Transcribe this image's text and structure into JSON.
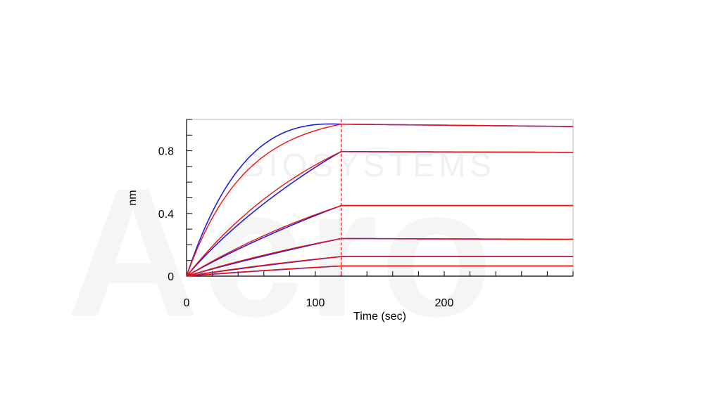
{
  "watermark": {
    "text": "Acro",
    "subtext": "BIOSYSTEMS"
  },
  "chart_data": {
    "type": "line",
    "title": "",
    "xlabel": "Time (sec)",
    "ylabel": "nm",
    "xlim": [
      0,
      300
    ],
    "ylim": [
      0,
      1.0
    ],
    "x_ticks": [
      0,
      100,
      200
    ],
    "y_ticks": [
      0,
      0.4,
      0.8
    ],
    "y_tick_labels": [
      "0",
      "0.4",
      "0.8"
    ],
    "x_tick_labels": [
      "0",
      "100",
      "200"
    ],
    "association_end": 120,
    "grid": false,
    "colors": {
      "measured": "#1f1fe0",
      "fit": "#ee1111",
      "divider": "#ee1111"
    },
    "series": [
      {
        "plateau": 0.97,
        "end": 0.955,
        "k": 0.022
      },
      {
        "plateau": 0.795,
        "end": 0.79,
        "k": 0.008
      },
      {
        "plateau": 0.45,
        "end": 0.45,
        "k": 0.005
      },
      {
        "plateau": 0.24,
        "end": 0.235,
        "k": 0.004
      },
      {
        "plateau": 0.125,
        "end": 0.125,
        "k": 0.004
      },
      {
        "plateau": 0.065,
        "end": 0.065,
        "k": 0.004
      }
    ]
  }
}
